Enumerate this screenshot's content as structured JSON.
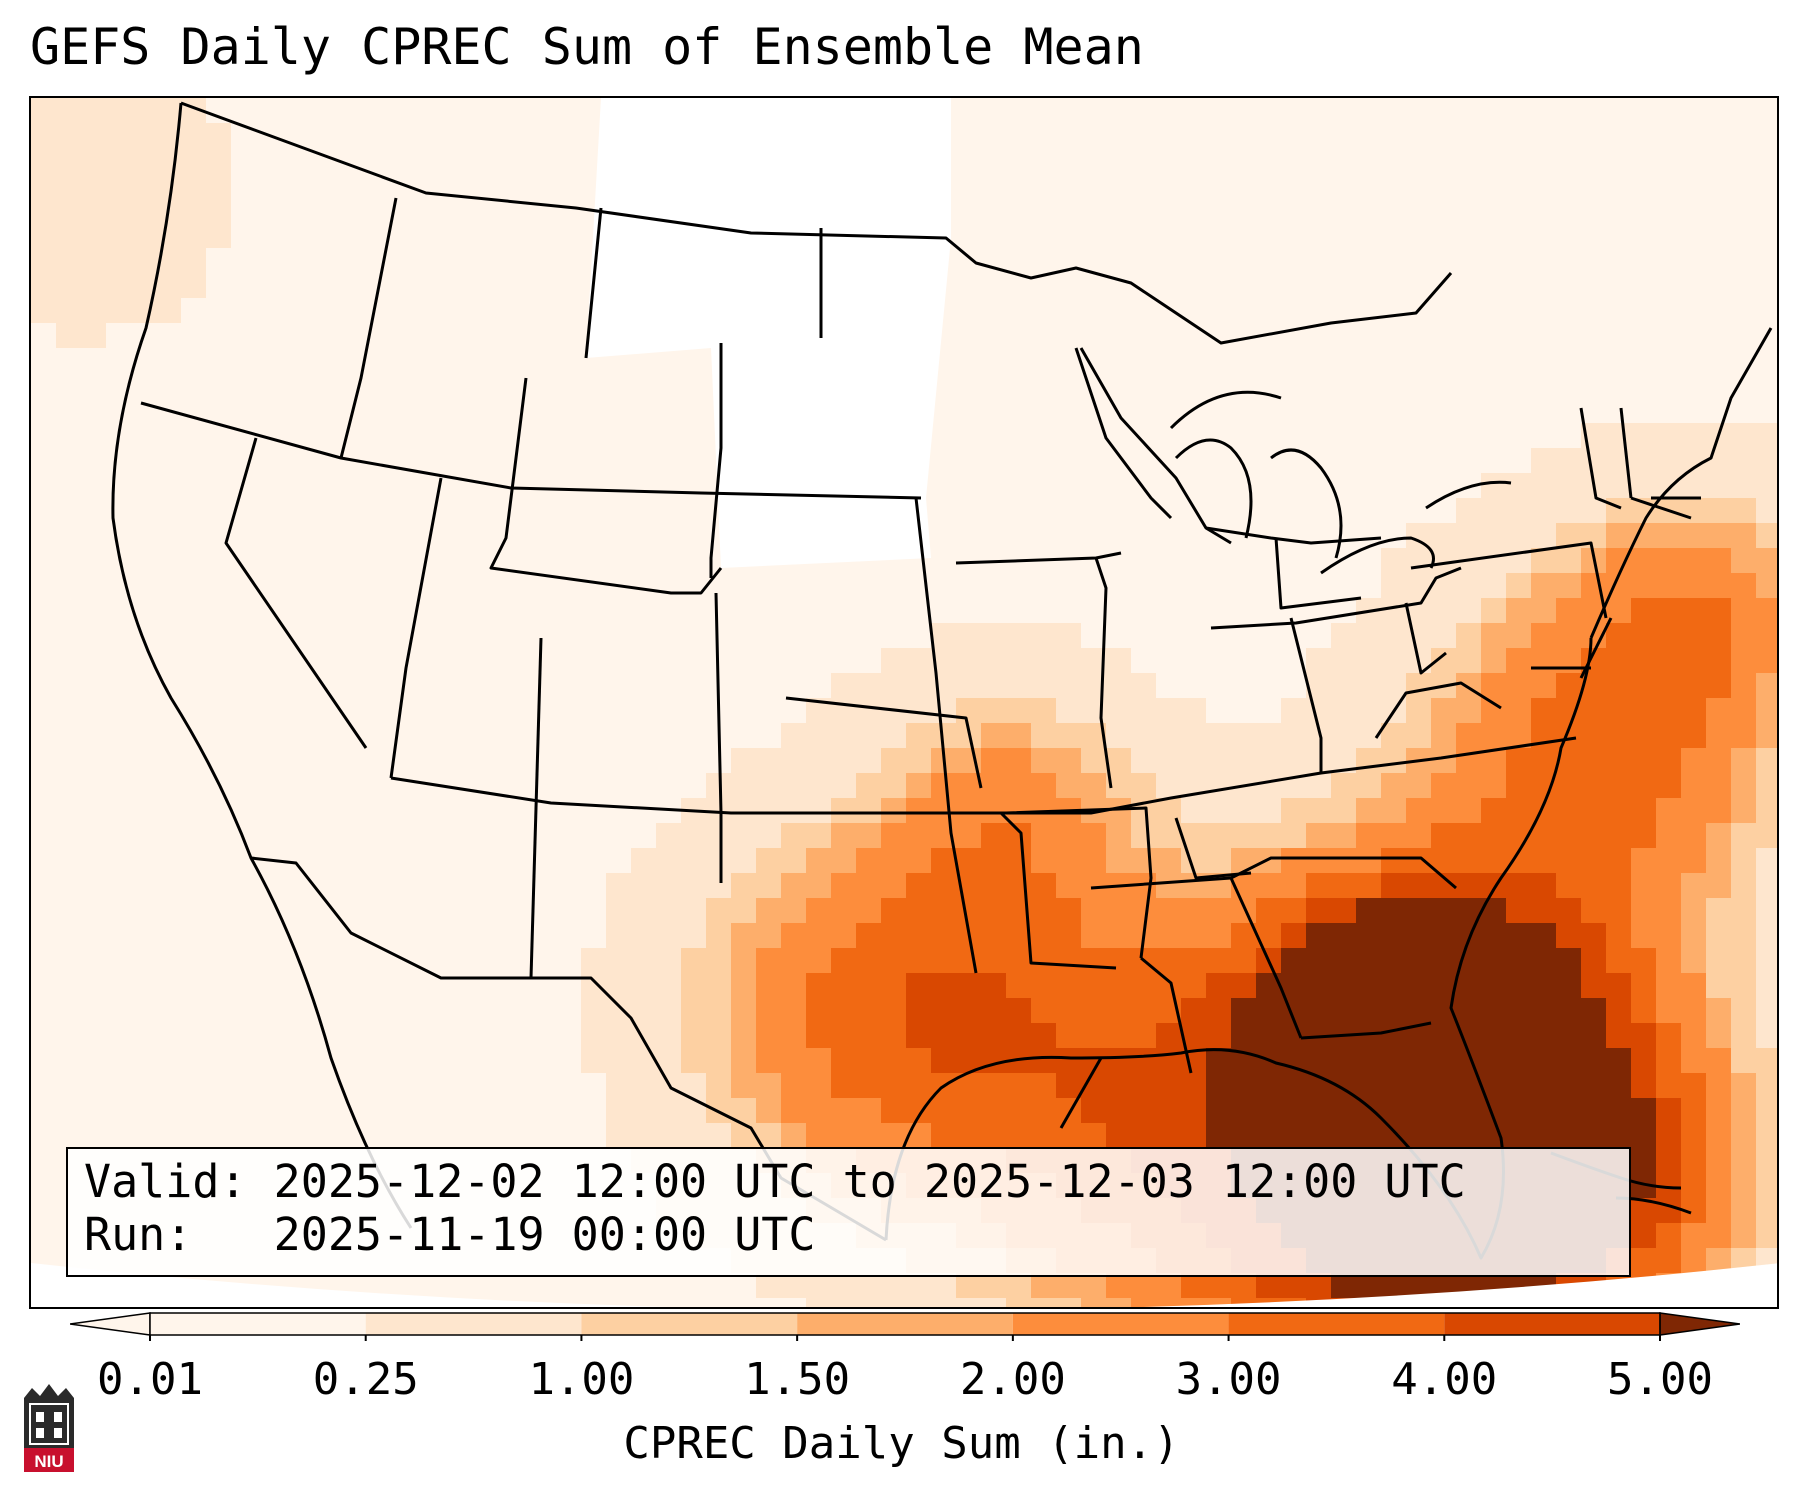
{
  "map": {
    "title": "GEFS Daily CPREC Sum of Ensemble Mean",
    "info": {
      "valid_line": "Valid: 2025-12-02 12:00 UTC to 2025-12-03 12:00 UTC",
      "run_line": "Run:   2025-11-19 00:00 UTC"
    },
    "colorbar": {
      "label": "CPREC Daily Sum (in.)",
      "ticks": [
        "0.01",
        "0.25",
        "1.00",
        "1.50",
        "2.00",
        "3.00",
        "4.00",
        "5.00"
      ],
      "colors": [
        "#fff5eb",
        "#fee6ce",
        "#fdd0a2",
        "#fdae6b",
        "#fd8d3c",
        "#f16913",
        "#d94801",
        "#7f2704"
      ],
      "extend": "both"
    },
    "field": {
      "variable": "CPREC",
      "units": "in.",
      "regions": [
        {
          "area": "Southeastern Texas / Louisiana Gulf coast",
          "value": 3.0
        },
        {
          "area": "Northern Gulf of Mexico",
          "value": 3.0
        },
        {
          "area": "Florida east coast / Bahamas",
          "value": 5.0
        },
        {
          "area": "Western Atlantic off Southeast coast",
          "value": 4.0
        },
        {
          "area": "Arkansas / Mississippi Valley",
          "value": 2.0
        },
        {
          "area": "Plains and West",
          "value": 0.1
        },
        {
          "area": "Northern Plains / Upper Midwest",
          "value": 0.0
        }
      ]
    },
    "logo": {
      "text": "NIU"
    }
  }
}
